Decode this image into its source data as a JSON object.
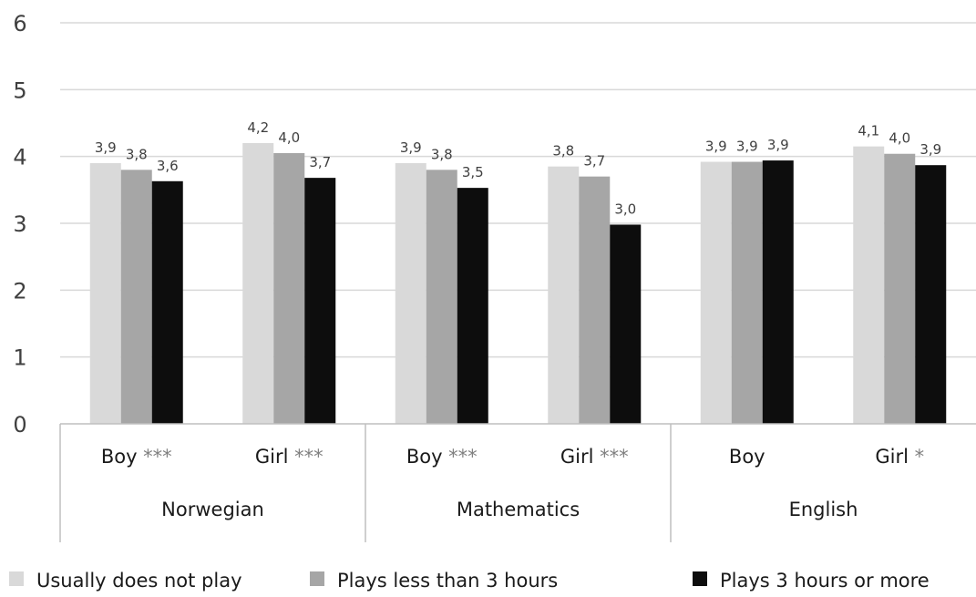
{
  "chart_data": {
    "type": "bar",
    "ylim": [
      0,
      6
    ],
    "yticks": [
      "0",
      "1",
      "2",
      "3",
      "4",
      "5",
      "6"
    ],
    "grid": true,
    "legend_position": "bottom",
    "categories": [
      {
        "label": "Boy",
        "stars": "***",
        "group": "Norwegian"
      },
      {
        "label": "Girl",
        "stars": "***",
        "group": "Norwegian"
      },
      {
        "label": "Boy",
        "stars": "***",
        "group": "Mathematics"
      },
      {
        "label": "Girl",
        "stars": "***",
        "group": "Mathematics"
      },
      {
        "label": "Boy",
        "stars": "",
        "group": "English"
      },
      {
        "label": "Girl",
        "stars": "*",
        "group": "English"
      }
    ],
    "groups": [
      "Norwegian",
      "Mathematics",
      "English"
    ],
    "series": [
      {
        "name": "Usually does not play",
        "color": "#d9d9d9",
        "values": [
          3.9,
          4.2,
          3.9,
          3.85,
          3.92,
          4.15
        ],
        "labels": [
          "3,9",
          "4,2",
          "3,9",
          "3,8",
          "3,9",
          "4,1"
        ]
      },
      {
        "name": "Plays less than 3 hours",
        "color": "#a6a6a6",
        "values": [
          3.8,
          4.05,
          3.8,
          3.7,
          3.92,
          4.04
        ],
        "labels": [
          "3,8",
          "4,0",
          "3,8",
          "3,7",
          "3,9",
          "4,0"
        ]
      },
      {
        "name": "Plays 3 hours or more",
        "color": "#0d0d0d",
        "values": [
          3.63,
          3.68,
          3.53,
          2.98,
          3.94,
          3.87
        ],
        "labels": [
          "3,6",
          "3,7",
          "3,5",
          "3,0",
          "3,9",
          "3,9"
        ]
      }
    ]
  }
}
